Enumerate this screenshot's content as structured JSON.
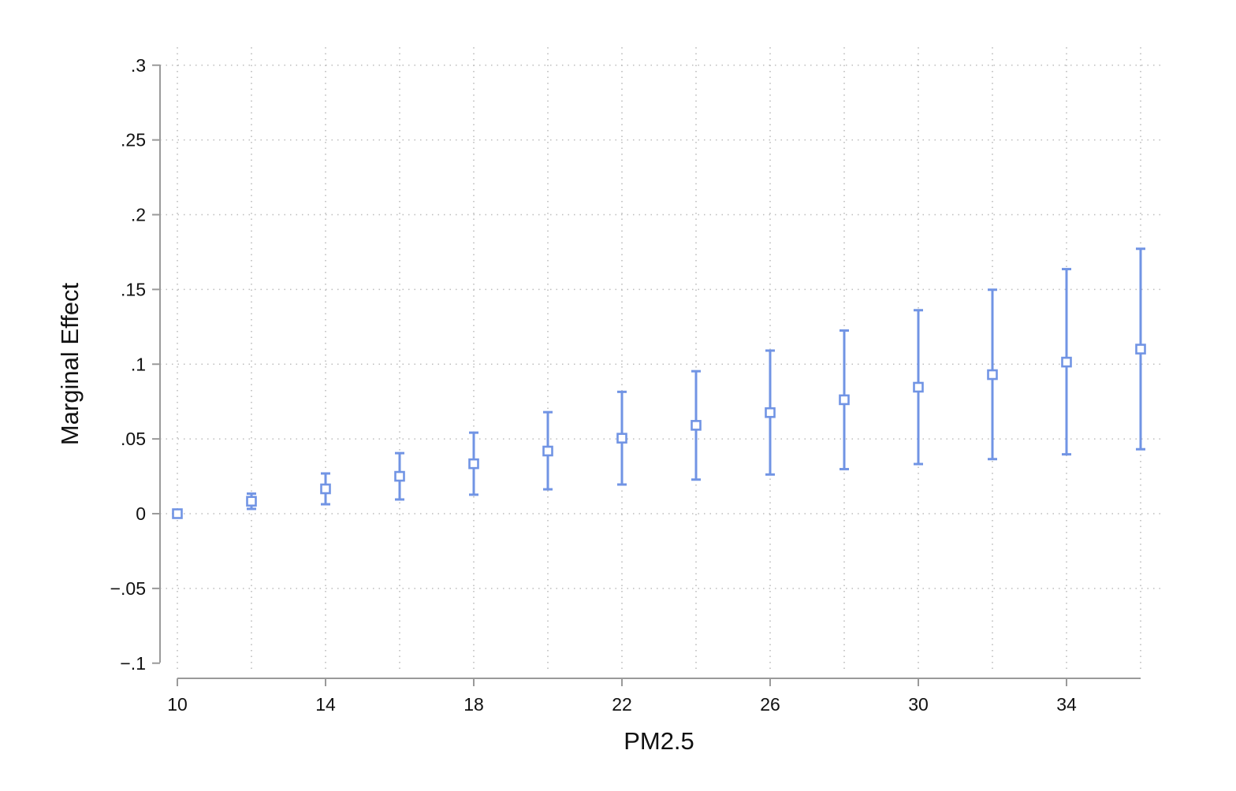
{
  "chart_data": {
    "type": "scatter",
    "title": "",
    "xlabel": "PM2.5",
    "ylabel": "Marginal Effect",
    "xlim": [
      9.7,
      36.2
    ],
    "ylim": [
      -0.1,
      0.3
    ],
    "x_ticks": [
      10,
      14,
      18,
      22,
      26,
      30,
      34
    ],
    "x_tick_labels": [
      "10",
      "14",
      "18",
      "22",
      "26",
      "30",
      "34"
    ],
    "y_ticks": [
      -0.1,
      -0.05,
      0,
      0.05,
      0.1,
      0.15,
      0.2,
      0.25,
      0.3
    ],
    "y_tick_labels": [
      "−.1",
      "−.05",
      "0",
      ".05",
      ".1",
      ".15",
      ".2",
      ".25",
      ".3"
    ],
    "grid": true,
    "legend": "none",
    "marker": "hollow-square",
    "color": "#7194e4",
    "series": [
      {
        "x": [
          10,
          12,
          14,
          16,
          18,
          20,
          22,
          24,
          26,
          28,
          30,
          32,
          34,
          36
        ],
        "y": [
          0.0,
          0.0083,
          0.0166,
          0.025,
          0.0334,
          0.0419,
          0.0505,
          0.0591,
          0.0676,
          0.0762,
          0.0846,
          0.093,
          0.1014,
          0.1101
        ],
        "ci_lower": [
          0.0,
          0.0032,
          0.0063,
          0.0095,
          0.0127,
          0.0163,
          0.0195,
          0.0228,
          0.0262,
          0.0298,
          0.0332,
          0.0365,
          0.0397,
          0.0431
        ],
        "ci_upper": [
          0.0,
          0.0134,
          0.0269,
          0.0405,
          0.0542,
          0.0679,
          0.0815,
          0.0953,
          0.1091,
          0.1225,
          0.1361,
          0.1498,
          0.1636,
          0.1772
        ]
      }
    ]
  }
}
